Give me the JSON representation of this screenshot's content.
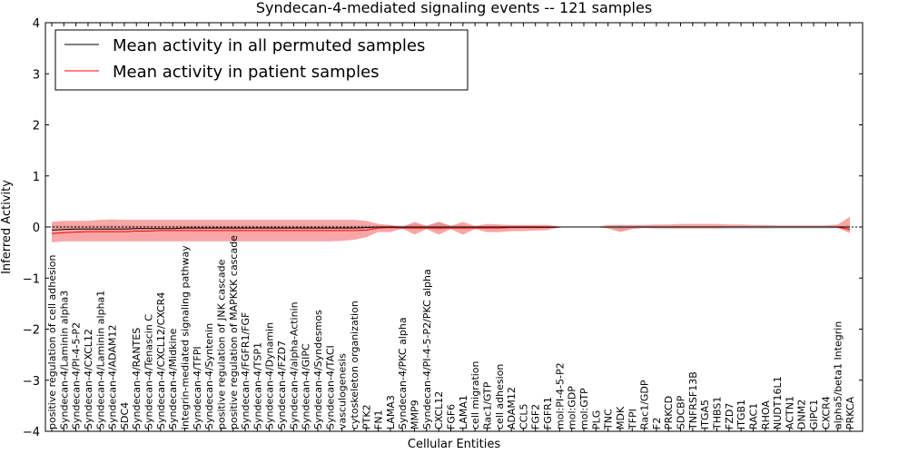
{
  "chart_data": {
    "type": "line",
    "title": "Syndecan-4-mediated signaling events -- 121 samples",
    "xlabel": "Cellular Entities",
    "ylabel": "Inferred Activity",
    "ylim": [
      -4,
      4
    ],
    "yticks": [
      -4,
      -3,
      -2,
      -1,
      0,
      1,
      2,
      3,
      4
    ],
    "ytick_labels": [
      "−4",
      "−3",
      "−2",
      "−1",
      "0",
      "1",
      "2",
      "3",
      "4"
    ],
    "legend_position": "top-left",
    "colors": {
      "permuted": "#000000",
      "patient": "#ff0000",
      "patient_band": "#f46b6b",
      "permuted_band": "#b3b3b3"
    },
    "categories": [
      "positive regulation of cell adhesion",
      "Syndecan-4/Laminin alpha3",
      "Syndecan-4/PI-4-5-P2",
      "Syndecan-4/CXCL12",
      "Syndecan-4/Laminin alpha1",
      "Syndecan-4/ADAM12",
      "SDC4",
      "Syndecan-4/RANTES",
      "Syndecan-4/Tenascin C",
      "Syndecan-4/CXCL12/CXCR4",
      "Syndecan-4/Midkine",
      "integrin-mediated signaling pathway",
      "Syndecan-4/TFPI",
      "Syndecan-4/Syntenin",
      "positive regulation of JNK cascade",
      "positive regulation of MAPKKK cascade",
      "Syndecan-4/FGFR1/FGF",
      "Syndecan-4/TSP1",
      "Syndecan-4/Dynamin",
      "Syndecan-4/FZD7",
      "Syndecan-4/alpha-Actinin",
      "Syndecan-4/GIPC",
      "Syndecan-4/Syndesmos",
      "Syndecan-4/TACI",
      "vasculogenesis",
      "cytoskeleton organization",
      "PTK2",
      "FN1",
      "LAMA3",
      "Syndecan-4/PKC alpha",
      "MMP9",
      "Syndecan-4/PI-4-5-P2/PKC alpha",
      "CXCL12",
      "FGF6",
      "LAMA1",
      "cell migration",
      "Rac1/GTP",
      "cell adhesion",
      "ADAM12",
      "CCL5",
      "FGF2",
      "FGFR1",
      "mol:PI-4-5-P2",
      "mol:GDP",
      "mol:GTP",
      "PLG",
      "TNC",
      "MDK",
      "TFPI",
      "Rac1/GDP",
      "F2",
      "PRKCD",
      "SDCBP",
      "TNFRSF13B",
      "ITGA5",
      "THBS1",
      "FZD7",
      "ITGB1",
      "RAC1",
      "RHOA",
      "NUDT16L1",
      "ACTN1",
      "DNM2",
      "GIPC1",
      "CXCR4",
      "alpha5/beta1 Integrin",
      "PRKCA"
    ],
    "series": [
      {
        "name": "Mean activity in all permuted samples",
        "color": "#000000",
        "values": [
          -0.06,
          -0.05,
          -0.04,
          -0.04,
          -0.04,
          -0.04,
          -0.04,
          -0.03,
          -0.03,
          -0.03,
          -0.03,
          -0.02,
          -0.02,
          -0.02,
          -0.02,
          -0.02,
          -0.02,
          -0.02,
          -0.02,
          -0.02,
          -0.02,
          -0.02,
          -0.02,
          -0.02,
          -0.02,
          -0.02,
          -0.01,
          0.0,
          0.0,
          0.0,
          0.0,
          0.0,
          0.0,
          0.0,
          0.0,
          0.0,
          0.0,
          0.0,
          0.0,
          0.0,
          0.0,
          0.0,
          0.0,
          0.0,
          0.0,
          0.0,
          0.0,
          0.0,
          0.0,
          0.0,
          0.0,
          0.0,
          0.0,
          0.0,
          0.0,
          0.0,
          0.0,
          0.0,
          0.0,
          0.0,
          0.0,
          0.0,
          0.0,
          0.0,
          0.0,
          0.0,
          0.0
        ]
      },
      {
        "name": "Mean activity in patient samples",
        "color": "#ff0000",
        "values": [
          -0.13,
          -0.11,
          -0.1,
          -0.09,
          -0.09,
          -0.09,
          -0.09,
          -0.08,
          -0.08,
          -0.07,
          -0.07,
          -0.07,
          -0.07,
          -0.07,
          -0.07,
          -0.07,
          -0.07,
          -0.07,
          -0.07,
          -0.07,
          -0.07,
          -0.07,
          -0.07,
          -0.07,
          -0.07,
          -0.07,
          -0.06,
          -0.02,
          -0.01,
          -0.02,
          -0.02,
          -0.02,
          -0.02,
          -0.02,
          -0.02,
          -0.02,
          -0.02,
          -0.02,
          -0.01,
          -0.01,
          -0.01,
          -0.01,
          0.0,
          0.0,
          0.0,
          0.0,
          0.0,
          0.0,
          0.0,
          0.0,
          0.0,
          0.0,
          0.0,
          0.0,
          0.0,
          0.0,
          0.0,
          0.0,
          0.0,
          0.0,
          0.0,
          0.0,
          0.0,
          0.0,
          0.0,
          0.0,
          -0.05
        ]
      }
    ],
    "patient_band": {
      "upper": [
        0.1,
        0.12,
        0.12,
        0.12,
        0.14,
        0.15,
        0.14,
        0.14,
        0.14,
        0.14,
        0.14,
        0.14,
        0.14,
        0.14,
        0.14,
        0.14,
        0.14,
        0.14,
        0.14,
        0.14,
        0.14,
        0.14,
        0.14,
        0.14,
        0.14,
        0.14,
        0.12,
        0.06,
        0.04,
        0.0,
        0.1,
        0.02,
        0.1,
        0.02,
        0.1,
        0.02,
        0.06,
        0.05,
        0.04,
        0.04,
        0.04,
        0.04,
        0.01,
        0.0,
        0.0,
        0.0,
        0.04,
        0.04,
        0.04,
        0.04,
        0.05,
        0.05,
        0.06,
        0.06,
        0.06,
        0.06,
        0.05,
        0.05,
        0.04,
        0.04,
        0.03,
        0.03,
        0.03,
        0.03,
        0.03,
        0.05,
        0.2
      ],
      "lower": [
        -0.3,
        -0.28,
        -0.28,
        -0.28,
        -0.28,
        -0.28,
        -0.28,
        -0.28,
        -0.28,
        -0.28,
        -0.28,
        -0.28,
        -0.28,
        -0.28,
        -0.28,
        -0.28,
        -0.28,
        -0.28,
        -0.28,
        -0.28,
        -0.28,
        -0.28,
        -0.28,
        -0.28,
        -0.27,
        -0.25,
        -0.2,
        -0.1,
        -0.1,
        -0.03,
        -0.15,
        -0.04,
        -0.15,
        -0.04,
        -0.15,
        -0.04,
        -0.1,
        -0.1,
        -0.08,
        -0.08,
        -0.07,
        -0.06,
        -0.01,
        0.0,
        0.0,
        0.0,
        -0.03,
        -0.1,
        -0.04,
        -0.02,
        -0.02,
        -0.02,
        -0.02,
        -0.02,
        -0.02,
        -0.02,
        -0.01,
        -0.01,
        -0.01,
        -0.01,
        -0.01,
        -0.01,
        -0.01,
        -0.01,
        -0.01,
        -0.02,
        -0.12
      ]
    },
    "permuted_band": {
      "upper": [
        0.03,
        0.03,
        0.03,
        0.03,
        0.03,
        0.03,
        0.03,
        0.03,
        0.03,
        0.03,
        0.03,
        0.03,
        0.03,
        0.03,
        0.03,
        0.03,
        0.03,
        0.03,
        0.03,
        0.03,
        0.03,
        0.03,
        0.03,
        0.03,
        0.03,
        0.03,
        0.03,
        0.03,
        0.03,
        0.03,
        0.06,
        0.03,
        0.1,
        0.03,
        0.03,
        0.02,
        0.02,
        0.02,
        0.02,
        0.02,
        0.02,
        0.02,
        0.01,
        0.0,
        0.0,
        0.0,
        0.01,
        0.01,
        0.01,
        0.02,
        0.02,
        0.02,
        0.02,
        0.02,
        0.02,
        0.02,
        0.02,
        0.02,
        0.02,
        0.02,
        0.02,
        0.02,
        0.02,
        0.02,
        0.02,
        0.02,
        0.03
      ],
      "lower": [
        -0.03,
        -0.03,
        -0.03,
        -0.03,
        -0.03,
        -0.03,
        -0.03,
        -0.03,
        -0.03,
        -0.03,
        -0.03,
        -0.03,
        -0.03,
        -0.03,
        -0.03,
        -0.03,
        -0.03,
        -0.03,
        -0.03,
        -0.03,
        -0.03,
        -0.03,
        -0.03,
        -0.03,
        -0.03,
        -0.03,
        -0.03,
        -0.03,
        -0.03,
        -0.03,
        -0.04,
        -0.03,
        -0.06,
        -0.03,
        -0.03,
        -0.02,
        -0.02,
        -0.02,
        -0.02,
        -0.02,
        -0.02,
        -0.02,
        -0.01,
        0.0,
        0.0,
        0.0,
        -0.01,
        -0.06,
        -0.02,
        -0.02,
        -0.04,
        -0.04,
        -0.04,
        -0.04,
        -0.04,
        -0.04,
        -0.04,
        -0.04,
        -0.04,
        -0.04,
        -0.03,
        -0.03,
        -0.03,
        -0.03,
        -0.03,
        -0.03,
        -0.03
      ]
    }
  }
}
